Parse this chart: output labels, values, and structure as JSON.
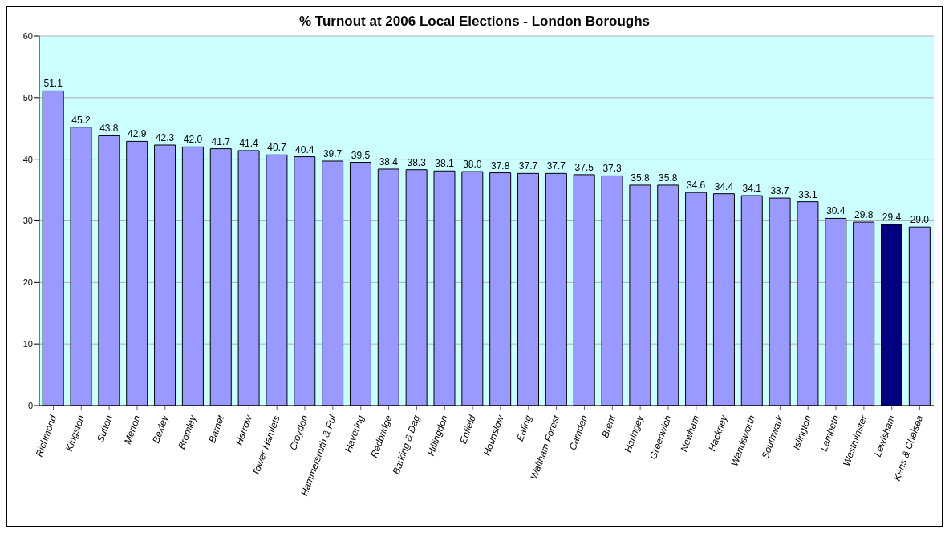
{
  "chart_data": {
    "type": "bar",
    "title": "% Turnout at 2006 Local Elections - London Boroughs",
    "categories": [
      "Richmond",
      "Kingston",
      "Sutton",
      "Merton",
      "Bexley",
      "Bromley",
      "Barnet",
      "Harrow",
      "Tower Hamlets",
      "Croydon",
      "Hammersmith & Ful",
      "Havering",
      "Redbridge",
      "Barking & Dag",
      "Hillingdon",
      "Enfield",
      "Hounslow",
      "Ealing",
      "Waltham Forest",
      "Camden",
      "Brent",
      "Haringey",
      "Greenwich",
      "Newham",
      "Hackney",
      "Wandsworth",
      "Southwark",
      "Islington",
      "Lambeth",
      "Westminster",
      "Lewisham",
      "Kens & Chelsea"
    ],
    "values": [
      51.1,
      45.2,
      43.8,
      42.9,
      42.3,
      42.0,
      41.7,
      41.4,
      40.7,
      40.4,
      39.7,
      39.5,
      38.4,
      38.3,
      38.1,
      38.0,
      37.8,
      37.7,
      37.7,
      37.5,
      37.3,
      35.8,
      35.8,
      34.6,
      34.4,
      34.1,
      33.7,
      33.1,
      30.4,
      29.8,
      29.4,
      29.0
    ],
    "value_labels": [
      "51.1",
      "45.2",
      "43.8",
      "42.9",
      "42.3",
      "42.0",
      "41.7",
      "41.4",
      "40.7",
      "40.4",
      "39.7",
      "39.5",
      "38.4",
      "38.3",
      "38.1",
      "38.0",
      "37.8",
      "37.7",
      "37.7",
      "37.5",
      "37.3",
      "35.8",
      "35.8",
      "34.6",
      "34.4",
      "34.1",
      "33.7",
      "33.1",
      "30.4",
      "29.8",
      "29.4",
      "29.0"
    ],
    "colors": [
      "#9999ff",
      "#9999ff",
      "#9999ff",
      "#9999ff",
      "#9999ff",
      "#9999ff",
      "#9999ff",
      "#9999ff",
      "#9999ff",
      "#9999ff",
      "#9999ff",
      "#9999ff",
      "#9999ff",
      "#9999ff",
      "#9999ff",
      "#9999ff",
      "#9999ff",
      "#9999ff",
      "#9999ff",
      "#9999ff",
      "#9999ff",
      "#9999ff",
      "#9999ff",
      "#9999ff",
      "#9999ff",
      "#9999ff",
      "#9999ff",
      "#9999ff",
      "#9999ff",
      "#9999ff",
      "#000080",
      "#9999ff"
    ],
    "ylim": [
      0,
      60
    ],
    "yticks": [
      0,
      10,
      20,
      30,
      40,
      50,
      60
    ],
    "grid": "y",
    "legend": false
  }
}
